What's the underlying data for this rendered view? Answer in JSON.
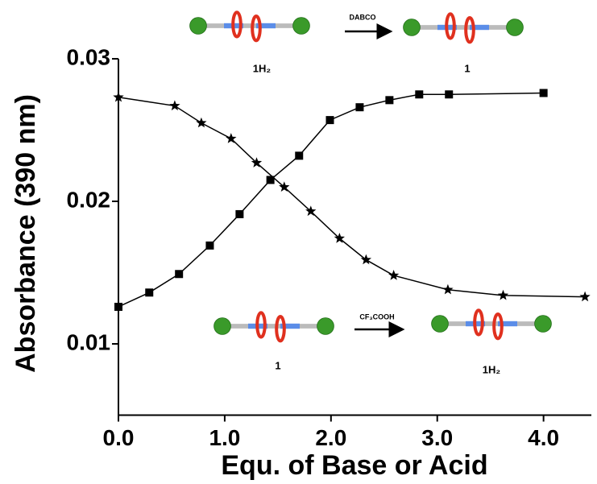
{
  "chart_data": {
    "type": "line",
    "x_label": "Equ. of Base or Acid",
    "y_label": "Absorbance (390 nm)",
    "xlim": [
      0,
      4.45
    ],
    "ylim": [
      0.005,
      0.03
    ],
    "xticks": [
      {
        "value": 0,
        "label": "0.0"
      },
      {
        "value": 1,
        "label": "1.0"
      },
      {
        "value": 2,
        "label": "2.0"
      },
      {
        "value": 3,
        "label": "3.0"
      },
      {
        "value": 4,
        "label": "4.0"
      }
    ],
    "yticks": [
      0.01,
      0.02,
      0.03
    ],
    "series": [
      {
        "color": "#000000",
        "marker": "square",
        "x": [
          0.0,
          0.29,
          0.57,
          0.86,
          1.14,
          1.43,
          1.7,
          1.99,
          2.27,
          2.55,
          2.83,
          3.11,
          4.0
        ],
        "values": [
          0.0126,
          0.0136,
          0.0149,
          0.0169,
          0.0191,
          0.0215,
          0.0232,
          0.0257,
          0.0266,
          0.0271,
          0.0275,
          0.0275,
          0.0276
        ]
      },
      {
        "color": "#000000",
        "marker": "star",
        "x": [
          0.0,
          0.53,
          0.78,
          1.06,
          1.3,
          1.56,
          1.81,
          2.08,
          2.33,
          2.59,
          3.1,
          3.62,
          4.39
        ],
        "values": [
          0.0273,
          0.0267,
          0.0255,
          0.0244,
          0.0227,
          0.021,
          0.0193,
          0.0174,
          0.0159,
          0.0148,
          0.0138,
          0.0134,
          0.0133
        ]
      }
    ],
    "annotations": [
      "1H₂",
      "DABCO",
      "1",
      "1",
      "CF₃COOH",
      "1H₂"
    ]
  }
}
